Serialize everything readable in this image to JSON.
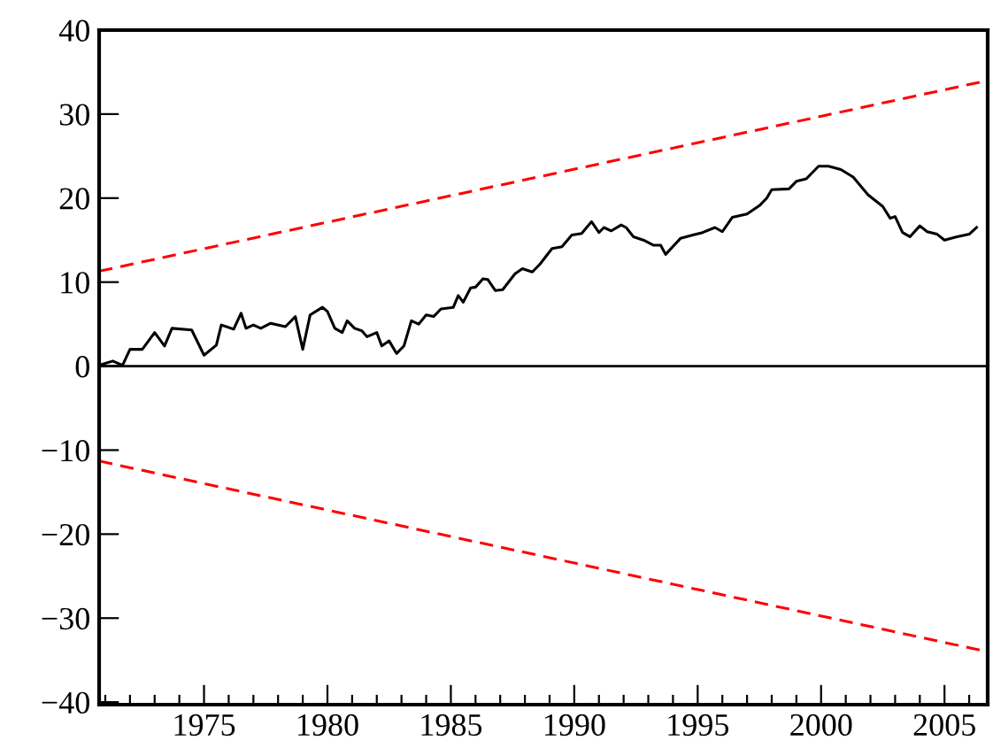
{
  "chart_data": {
    "type": "line",
    "xlim": [
      1970.75,
      2006.75
    ],
    "ylim": [
      -40.3,
      40
    ],
    "xticks": [
      {
        "value": 1971,
        "label": null
      },
      {
        "value": 1972,
        "label": null
      },
      {
        "value": 1973,
        "label": null
      },
      {
        "value": 1974,
        "label": null
      },
      1975,
      {
        "value": 1976,
        "label": null
      },
      {
        "value": 1977,
        "label": null
      },
      {
        "value": 1978,
        "label": null
      },
      {
        "value": 1979,
        "label": null
      },
      1980,
      {
        "value": 1981,
        "label": null
      },
      {
        "value": 1982,
        "label": null
      },
      {
        "value": 1983,
        "label": null
      },
      {
        "value": 1984,
        "label": null
      },
      1985,
      {
        "value": 1986,
        "label": null
      },
      {
        "value": 1987,
        "label": null
      },
      {
        "value": 1988,
        "label": null
      },
      {
        "value": 1989,
        "label": null
      },
      1990,
      {
        "value": 1991,
        "label": null
      },
      {
        "value": 1992,
        "label": null
      },
      {
        "value": 1993,
        "label": null
      },
      {
        "value": 1994,
        "label": null
      },
      1995,
      {
        "value": 1996,
        "label": null
      },
      {
        "value": 1997,
        "label": null
      },
      {
        "value": 1998,
        "label": null
      },
      {
        "value": 1999,
        "label": null
      },
      2000,
      {
        "value": 2001,
        "label": null
      },
      {
        "value": 2002,
        "label": null
      },
      {
        "value": 2003,
        "label": null
      },
      {
        "value": 2004,
        "label": null
      },
      2005,
      {
        "value": 2006,
        "label": null
      }
    ],
    "yticks": [
      {
        "value": -40,
        "label": "−40"
      },
      {
        "value": -30,
        "label": "−30"
      },
      {
        "value": -20,
        "label": "−20"
      },
      {
        "value": -10,
        "label": "−10"
      },
      0,
      10,
      20,
      30,
      40
    ],
    "grid": false,
    "legend": false,
    "ref_lines": [
      {
        "axis": "y",
        "value": 0,
        "color": "#000000",
        "line_style": "solid"
      }
    ],
    "series": [
      {
        "color": "#000000",
        "line_style": "solid",
        "x": [
          1970.75,
          1971.3,
          1971.7,
          1972.0,
          1972.5,
          1973.0,
          1973.4,
          1973.7,
          1974.5,
          1975.0,
          1975.5,
          1975.7,
          1976.2,
          1976.5,
          1976.7,
          1977.0,
          1977.3,
          1977.7,
          1978.3,
          1978.7,
          1979.0,
          1979.3,
          1979.8,
          1980.0,
          1980.3,
          1980.6,
          1980.8,
          1981.1,
          1981.4,
          1981.6,
          1982.0,
          1982.2,
          1982.5,
          1982.8,
          1983.1,
          1983.4,
          1983.7,
          1984.0,
          1984.3,
          1984.6,
          1985.1,
          1985.3,
          1985.5,
          1985.8,
          1986.0,
          1986.3,
          1986.5,
          1986.8,
          1987.1,
          1987.6,
          1987.9,
          1988.3,
          1988.6,
          1989.1,
          1989.5,
          1989.9,
          1990.3,
          1990.7,
          1991.0,
          1991.2,
          1991.5,
          1991.9,
          1992.1,
          1992.4,
          1992.8,
          1993.2,
          1993.5,
          1993.7,
          1994.3,
          1994.8,
          1995.2,
          1995.7,
          1996.0,
          1996.4,
          1997.0,
          1997.5,
          1997.8,
          1998.0,
          1998.7,
          1999.0,
          1999.4,
          1999.9,
          2000.3,
          2000.8,
          2001.3,
          2001.9,
          2002.5,
          2002.8,
          2003.0,
          2003.3,
          2003.6,
          2004.0,
          2004.3,
          2004.7,
          2005.0,
          2005.5,
          2006.0,
          2006.3
        ],
        "values": [
          0.1,
          0.6,
          0.1,
          2.0,
          2.0,
          4.0,
          2.4,
          4.5,
          4.3,
          1.3,
          2.5,
          4.9,
          4.4,
          6.3,
          4.5,
          4.9,
          4.5,
          5.1,
          4.7,
          5.9,
          2.0,
          6.1,
          7.0,
          6.5,
          4.5,
          4.0,
          5.4,
          4.5,
          4.2,
          3.5,
          4.0,
          2.4,
          3.0,
          1.5,
          2.4,
          5.4,
          5.0,
          6.1,
          5.9,
          6.8,
          7.0,
          8.4,
          7.6,
          9.3,
          9.4,
          10.4,
          10.3,
          9.0,
          9.1,
          11.0,
          11.6,
          11.2,
          12.1,
          14.0,
          14.2,
          15.6,
          15.8,
          17.2,
          15.9,
          16.5,
          16.1,
          16.8,
          16.5,
          15.4,
          15.0,
          14.4,
          14.4,
          13.3,
          15.2,
          15.6,
          15.9,
          16.5,
          16.0,
          17.7,
          18.1,
          19.1,
          20.0,
          21.0,
          21.1,
          22.0,
          22.3,
          23.8,
          23.8,
          23.4,
          22.5,
          20.4,
          19.0,
          17.6,
          17.8,
          15.9,
          15.4,
          16.7,
          16.0,
          15.7,
          15.0,
          15.4,
          15.7,
          16.5
        ]
      },
      {
        "color": "#ff0000",
        "line_style": "dashed",
        "x": [
          1970.75,
          2006.75
        ],
        "values": [
          11.3,
          34
        ]
      },
      {
        "color": "#ff0000",
        "line_style": "dashed",
        "x": [
          1970.75,
          2006.75
        ],
        "values": [
          -11.3,
          -34
        ]
      }
    ]
  }
}
